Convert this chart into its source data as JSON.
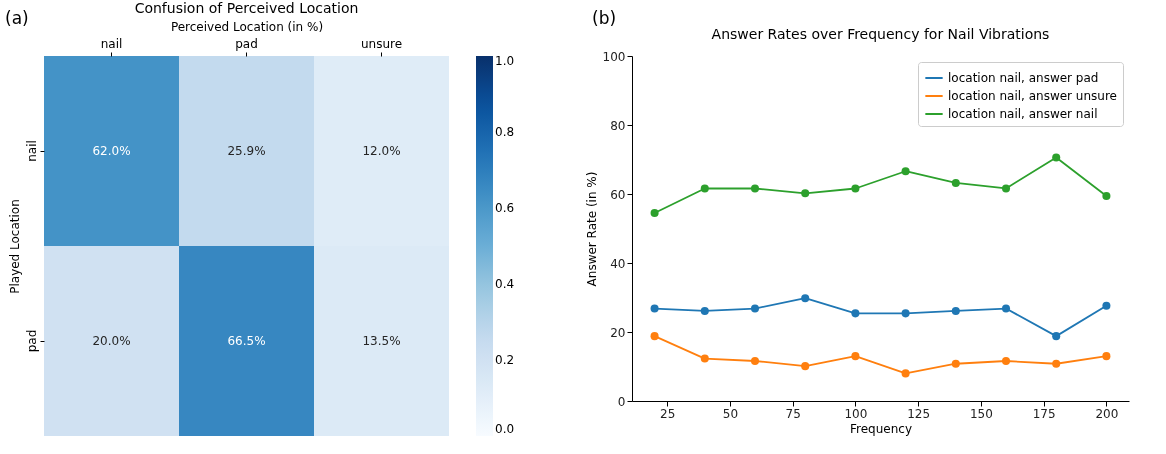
{
  "chart_data": [
    {
      "type": "heatmap",
      "title": "Confusion of Perceived Location",
      "xlabel": "Perceived Location (in %)",
      "ylabel": "Played Location",
      "categories": [
        "nail",
        "pad",
        "unsure"
      ],
      "y_categories": [
        "nail",
        "pad"
      ],
      "cells": [
        [
          0.62,
          0.259,
          0.12
        ],
        [
          0.2,
          0.665,
          0.135
        ]
      ],
      "cell_labels": [
        [
          "62.0%",
          "25.9%",
          "12.0%"
        ],
        [
          "20.0%",
          "66.5%",
          "13.5%"
        ]
      ],
      "clim": [
        0,
        1
      ],
      "cticks": [
        {
          "value": 0,
          "label": "0.0"
        },
        0.2,
        0.4,
        0.6,
        0.8,
        {
          "value": 1,
          "label": "1.0"
        }
      ],
      "annotations": [
        "(a)"
      ]
    },
    {
      "type": "line",
      "title": "Answer Rates over Frequency for Nail Vibrations",
      "xlabel": "Frequency",
      "ylabel": "Answer Rate (in %)",
      "x": [
        20,
        40,
        60,
        80,
        100,
        120,
        140,
        160,
        180,
        200
      ],
      "series": [
        {
          "name": "location nail, answer pad",
          "color": "#1f77b4",
          "values": [
            26.8,
            26.1,
            26.8,
            29.8,
            25.4,
            25.4,
            26.1,
            26.8,
            18.8,
            27.6
          ]
        },
        {
          "name": "location nail, answer unsure",
          "color": "#ff7f0e",
          "values": [
            18.8,
            12.3,
            11.6,
            10.1,
            13.0,
            8.0,
            10.8,
            11.6,
            10.8,
            13.0
          ]
        },
        {
          "name": "location nail, answer nail",
          "color": "#2ca02c",
          "values": [
            54.5,
            61.6,
            61.6,
            60.2,
            61.6,
            66.6,
            63.2,
            61.6,
            70.6,
            59.4
          ]
        }
      ],
      "xlim": [
        11,
        209
      ],
      "xticks": [
        25,
        50,
        75,
        100,
        125,
        150,
        175,
        200
      ],
      "ylim": [
        0,
        100
      ],
      "yticks": [
        0,
        20,
        40,
        60,
        80,
        100
      ],
      "grid": false,
      "legend": "top right",
      "marker": "circle",
      "line_style": "solid",
      "annotations": [
        "(b)"
      ]
    }
  ]
}
